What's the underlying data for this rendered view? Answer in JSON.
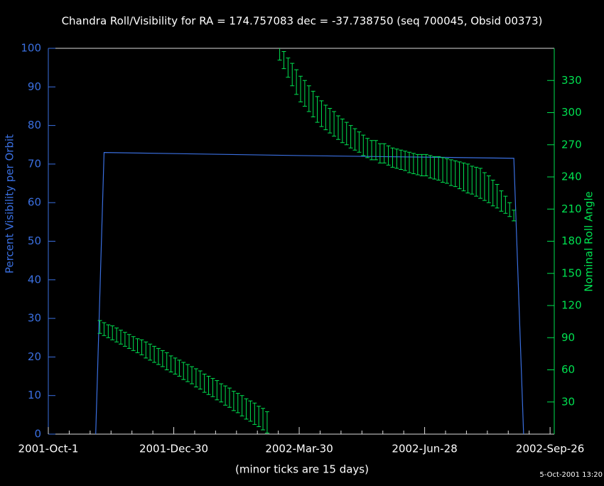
{
  "chart_data": {
    "type": "line",
    "title": "Chandra Roll/Visibility for RA = 174.757083 dec = -37.738750 (seq 700045, Obsid 00373)",
    "xlabel": "(minor ticks are 15 days)",
    "ylabel": "Percent Visibility per Orbit",
    "y2label": "Nominal Roll Angle",
    "footnote": "5-Oct-2001 13:20",
    "xlim": [
      "2001-10-01",
      "2002-09-29"
    ],
    "xticks": [
      {
        "value": "2001-10-01",
        "label": "2001-Oct-1"
      },
      {
        "value": "2001-12-30",
        "label": "2001-Dec-30"
      },
      {
        "value": "2002-03-30",
        "label": "2002-Mar-30"
      },
      {
        "value": "2002-06-28",
        "label": "2002-Jun-28"
      },
      {
        "value": "2002-09-26",
        "label": "2002-Sep-26"
      }
    ],
    "xminor_ticks": [
      "2001-10-16",
      "2001-10-31",
      "2001-11-15",
      "2001-11-30",
      "2001-12-15",
      "2002-01-14",
      "2002-01-29",
      "2002-02-13",
      "2002-02-28",
      "2002-03-15",
      "2002-04-14",
      "2002-04-29",
      "2002-05-14",
      "2002-05-29",
      "2002-06-13",
      "2002-07-13",
      "2002-07-28",
      "2002-08-12",
      "2002-08-27",
      "2002-09-11"
    ],
    "ylim": [
      0,
      100
    ],
    "yticks": [
      0,
      10,
      20,
      30,
      40,
      50,
      60,
      70,
      80,
      90,
      100
    ],
    "y2lim": [
      0,
      360
    ],
    "y2ticks": [
      30,
      60,
      90,
      120,
      150,
      180,
      210,
      240,
      270,
      300,
      330
    ],
    "series": [
      {
        "type": "line",
        "color": "#3a6fe0",
        "x": [
          "2001-11-04",
          "2001-11-10",
          "2002-03-30",
          "2002-08-31",
          "2002-09-07"
        ],
        "values": [
          0,
          73,
          72.2,
          71.5,
          0
        ]
      },
      {
        "type": "errorbar",
        "axis": "y2",
        "color": "#00e050",
        "x": [
          "2001-11-07",
          "2001-11-10",
          "2001-11-13",
          "2001-11-16",
          "2001-11-19",
          "2001-11-22",
          "2001-11-25",
          "2001-11-28",
          "2001-12-01",
          "2001-12-04",
          "2001-12-07",
          "2001-12-10",
          "2001-12-13",
          "2001-12-16",
          "2001-12-19",
          "2001-12-22",
          "2001-12-25",
          "2001-12-28",
          "2001-12-31",
          "2002-01-03",
          "2002-01-06",
          "2002-01-09",
          "2002-01-12",
          "2002-01-15",
          "2002-01-18",
          "2002-01-21",
          "2002-01-24",
          "2002-01-27",
          "2002-01-30",
          "2002-02-02",
          "2002-02-05",
          "2002-02-08",
          "2002-02-11",
          "2002-02-14",
          "2002-02-17",
          "2002-02-20",
          "2002-02-23",
          "2002-02-26",
          "2002-03-01",
          "2002-03-04",
          "2002-03-07",
          "2002-03-16",
          "2002-03-19",
          "2002-03-22",
          "2002-03-25",
          "2002-03-28",
          "2002-03-31",
          "2002-04-03",
          "2002-04-06",
          "2002-04-09",
          "2002-04-12",
          "2002-04-15",
          "2002-04-18",
          "2002-04-21",
          "2002-04-24",
          "2002-04-27",
          "2002-04-30",
          "2002-05-03",
          "2002-05-06",
          "2002-05-09",
          "2002-05-12",
          "2002-05-15",
          "2002-05-18",
          "2002-05-21",
          "2002-05-24",
          "2002-05-27",
          "2002-05-30",
          "2002-06-02",
          "2002-06-05",
          "2002-06-08",
          "2002-06-11",
          "2002-06-14",
          "2002-06-17",
          "2002-06-20",
          "2002-06-23",
          "2002-06-26",
          "2002-06-29",
          "2002-07-02",
          "2002-07-05",
          "2002-07-08",
          "2002-07-11",
          "2002-07-14",
          "2002-07-17",
          "2002-07-20",
          "2002-07-23",
          "2002-07-26",
          "2002-07-29",
          "2002-08-01",
          "2002-08-04",
          "2002-08-07",
          "2002-08-10",
          "2002-08-13",
          "2002-08-16",
          "2002-08-19",
          "2002-08-22",
          "2002-08-25",
          "2002-08-28",
          "2002-08-31"
        ],
        "low": [
          94,
          92,
          90,
          88,
          86,
          84,
          82,
          80,
          78,
          76,
          74,
          71,
          69,
          67,
          65,
          63,
          60,
          58,
          56,
          54,
          51,
          49,
          47,
          44,
          42,
          39,
          37,
          35,
          32,
          30,
          27,
          25,
          22,
          20,
          17,
          14,
          12,
          9,
          7,
          4,
          1,
          349,
          341,
          333,
          325,
          317,
          310,
          306,
          301,
          296,
          291,
          287,
          284,
          281,
          278,
          275,
          272,
          270,
          267,
          265,
          263,
          260,
          258,
          256,
          256,
          253,
          253,
          251,
          249,
          248,
          247,
          246,
          244,
          243,
          242,
          241,
          241,
          239,
          238,
          237,
          235,
          234,
          232,
          231,
          229,
          227,
          225,
          224,
          222,
          220,
          218,
          216,
          213,
          211,
          208,
          206,
          203,
          199
        ],
        "high": [
          106,
          104,
          102,
          101,
          99,
          97,
          95,
          93,
          91,
          89,
          88,
          86,
          84,
          82,
          80,
          78,
          76,
          73,
          71,
          69,
          67,
          65,
          63,
          61,
          59,
          56,
          54,
          52,
          50,
          47,
          45,
          43,
          40,
          38,
          36,
          33,
          31,
          29,
          26,
          24,
          21,
          363,
          357,
          351,
          346,
          340,
          334,
          330,
          325,
          320,
          315,
          311,
          307,
          304,
          301,
          297,
          294,
          291,
          288,
          285,
          282,
          279,
          276,
          274,
          274,
          271,
          271,
          269,
          267,
          266,
          265,
          264,
          263,
          262,
          261,
          261,
          261,
          260,
          259,
          259,
          258,
          257,
          256,
          255,
          254,
          253,
          252,
          250,
          249,
          248,
          244,
          241,
          237,
          233,
          227,
          222,
          216,
          209
        ]
      }
    ]
  }
}
